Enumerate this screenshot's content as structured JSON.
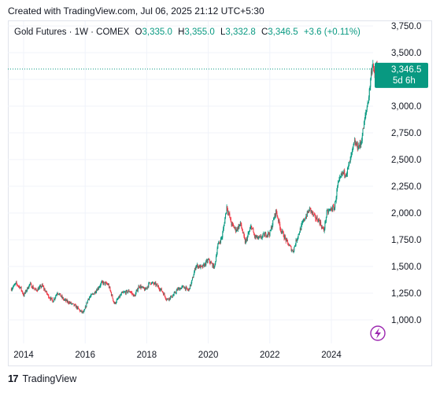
{
  "header": {
    "created_text": "Created with TradingView.com, Jul 06, 2025 21:12 UTC+5:30"
  },
  "legend": {
    "symbol": "Gold Futures · 1W · COMEX",
    "o_label": "O",
    "o_value": "3,335.0",
    "h_label": "H",
    "h_value": "3,355.0",
    "l_label": "L",
    "l_value": "3,332.8",
    "c_label": "C",
    "c_value": "3,346.5",
    "change": "+3.6 (+0.11%)"
  },
  "price_tag": {
    "price": "3,346.5",
    "countdown": "5d 6h",
    "color": "#089981"
  },
  "footer": {
    "brand": "TradingView",
    "logo": "tradingview-logo-icon"
  },
  "colors": {
    "up": "#089981",
    "down": "#f23645",
    "grid": "#f0f3fa",
    "text": "#131722",
    "accent_icon": "#9c27b0"
  },
  "chart_data": {
    "type": "candlestick",
    "interval": "1W",
    "ylim": [
      850,
      3800
    ],
    "y_ticks": [
      "1,000.0",
      "1,250.0",
      "1,500.0",
      "1,750.0",
      "2,000.0",
      "2,250.0",
      "2,500.0",
      "2,750.0",
      "3,000.0",
      "3,250.0",
      "3,500.0",
      "3,750.0"
    ],
    "y_tick_values": [
      1000,
      1250,
      1500,
      1750,
      2000,
      2250,
      2500,
      2750,
      3000,
      3250,
      3500,
      3750
    ],
    "xlim": [
      2013.6,
      2025.9
    ],
    "x_ticks": [
      "2014",
      "2016",
      "2018",
      "2020",
      "2022",
      "2024"
    ],
    "x_tick_values": [
      2014,
      2016,
      2018,
      2020,
      2022,
      2024
    ],
    "last_price": 3346.5,
    "grid": true,
    "price_path": [
      [
        2013.6,
        1290
      ],
      [
        2013.75,
        1340
      ],
      [
        2013.9,
        1300
      ],
      [
        2014.0,
        1230
      ],
      [
        2014.2,
        1335
      ],
      [
        2014.4,
        1275
      ],
      [
        2014.6,
        1320
      ],
      [
        2014.8,
        1225
      ],
      [
        2014.95,
        1175
      ],
      [
        2015.1,
        1260
      ],
      [
        2015.3,
        1190
      ],
      [
        2015.5,
        1160
      ],
      [
        2015.7,
        1125
      ],
      [
        2015.85,
        1080
      ],
      [
        2015.95,
        1065
      ],
      [
        2016.1,
        1200
      ],
      [
        2016.3,
        1255
      ],
      [
        2016.55,
        1350
      ],
      [
        2016.75,
        1330
      ],
      [
        2016.95,
        1150
      ],
      [
        2017.2,
        1250
      ],
      [
        2017.45,
        1270
      ],
      [
        2017.6,
        1220
      ],
      [
        2017.75,
        1320
      ],
      [
        2017.95,
        1280
      ],
      [
        2018.1,
        1350
      ],
      [
        2018.3,
        1330
      ],
      [
        2018.5,
        1270
      ],
      [
        2018.65,
        1190
      ],
      [
        2018.85,
        1225
      ],
      [
        2019.0,
        1285
      ],
      [
        2019.2,
        1310
      ],
      [
        2019.35,
        1275
      ],
      [
        2019.45,
        1345
      ],
      [
        2019.6,
        1510
      ],
      [
        2019.8,
        1490
      ],
      [
        2020.0,
        1560
      ],
      [
        2020.2,
        1490
      ],
      [
        2020.3,
        1690
      ],
      [
        2020.45,
        1780
      ],
      [
        2020.6,
        2060
      ],
      [
        2020.75,
        1900
      ],
      [
        2020.9,
        1840
      ],
      [
        2021.05,
        1900
      ],
      [
        2021.2,
        1720
      ],
      [
        2021.4,
        1880
      ],
      [
        2021.5,
        1780
      ],
      [
        2021.65,
        1760
      ],
      [
        2021.85,
        1800
      ],
      [
        2022.0,
        1810
      ],
      [
        2022.2,
        2020
      ],
      [
        2022.35,
        1850
      ],
      [
        2022.55,
        1730
      ],
      [
        2022.75,
        1640
      ],
      [
        2022.9,
        1780
      ],
      [
        2023.1,
        1930
      ],
      [
        2023.3,
        2040
      ],
      [
        2023.45,
        1960
      ],
      [
        2023.6,
        1930
      ],
      [
        2023.75,
        1830
      ],
      [
        2023.85,
        2000
      ],
      [
        2024.0,
        2040
      ],
      [
        2024.1,
        2050
      ],
      [
        2024.2,
        2250
      ],
      [
        2024.35,
        2370
      ],
      [
        2024.5,
        2380
      ],
      [
        2024.6,
        2480
      ],
      [
        2024.75,
        2660
      ],
      [
        2024.85,
        2620
      ],
      [
        2024.95,
        2640
      ],
      [
        2025.1,
        2900
      ],
      [
        2025.22,
        3100
      ],
      [
        2025.3,
        3330
      ],
      [
        2025.35,
        3420
      ],
      [
        2025.4,
        3250
      ],
      [
        2025.45,
        3400
      ],
      [
        2025.5,
        3340
      ]
    ]
  }
}
